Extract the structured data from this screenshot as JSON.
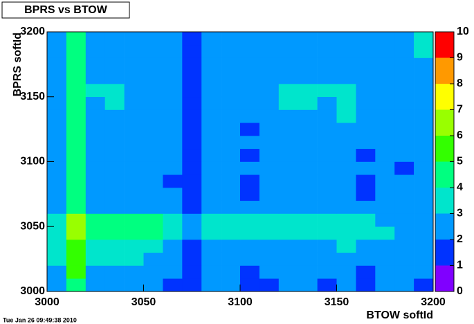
{
  "chart_data": {
    "type": "heatmap",
    "title": "BPRS vs BTOW",
    "xlabel": "BTOW softId",
    "ylabel": "BPRS softId",
    "footer": "Tue Jan 26 09:49:38 2010",
    "xbins": [
      3000,
      3010,
      3020,
      3030,
      3040,
      3050,
      3060,
      3070,
      3080,
      3090,
      3100,
      3110,
      3120,
      3130,
      3140,
      3150,
      3160,
      3170,
      3180,
      3190,
      3200
    ],
    "ybins": [
      3000,
      3010,
      3020,
      3030,
      3040,
      3050,
      3060,
      3070,
      3080,
      3090,
      3100,
      3110,
      3120,
      3130,
      3140,
      3150,
      3160,
      3170,
      3180,
      3190,
      3200
    ],
    "values": [
      [
        2,
        4,
        2,
        2,
        2,
        2,
        1,
        1,
        2,
        2,
        1,
        1,
        2,
        2,
        1,
        2,
        1,
        2,
        2,
        1
      ],
      [
        2,
        5,
        2,
        2,
        2,
        2,
        2,
        1,
        2,
        2,
        1,
        2,
        2,
        2,
        2,
        2,
        1,
        2,
        2,
        2
      ],
      [
        3,
        5,
        3,
        3,
        3,
        2,
        2,
        1,
        2,
        2,
        2,
        2,
        2,
        2,
        2,
        2,
        2,
        2,
        2,
        2
      ],
      [
        3,
        5,
        3,
        3,
        3,
        3,
        2,
        1,
        2,
        2,
        2,
        2,
        2,
        2,
        2,
        3,
        2,
        2,
        2,
        2
      ],
      [
        3,
        6,
        4,
        4,
        4,
        4,
        3,
        2,
        3,
        3,
        3,
        3,
        3,
        3,
        3,
        3,
        3,
        3,
        2,
        2
      ],
      [
        3,
        6,
        4,
        4,
        4,
        4,
        3,
        2,
        3,
        3,
        3,
        3,
        3,
        3,
        3,
        3,
        3,
        2,
        2,
        2
      ],
      [
        2,
        4,
        2,
        2,
        2,
        2,
        2,
        1,
        2,
        2,
        2,
        2,
        2,
        2,
        2,
        2,
        2,
        2,
        2,
        2
      ],
      [
        2,
        4,
        2,
        2,
        2,
        2,
        2,
        1,
        2,
        2,
        1,
        2,
        2,
        2,
        2,
        2,
        1,
        2,
        2,
        2
      ],
      [
        2,
        4,
        2,
        2,
        2,
        2,
        1,
        1,
        2,
        2,
        1,
        2,
        2,
        2,
        2,
        2,
        1,
        2,
        2,
        2
      ],
      [
        2,
        4,
        2,
        2,
        2,
        2,
        2,
        1,
        2,
        2,
        2,
        2,
        2,
        2,
        2,
        2,
        2,
        2,
        1,
        2
      ],
      [
        2,
        4,
        2,
        2,
        2,
        2,
        2,
        1,
        2,
        2,
        1,
        2,
        2,
        2,
        2,
        2,
        1,
        2,
        2,
        2
      ],
      [
        2,
        4,
        2,
        2,
        2,
        2,
        2,
        1,
        2,
        2,
        2,
        2,
        2,
        2,
        2,
        2,
        2,
        2,
        2,
        2
      ],
      [
        2,
        4,
        2,
        2,
        2,
        2,
        2,
        1,
        2,
        2,
        1,
        2,
        2,
        2,
        2,
        2,
        2,
        2,
        2,
        2
      ],
      [
        2,
        4,
        2,
        2,
        2,
        2,
        2,
        1,
        2,
        2,
        2,
        2,
        2,
        2,
        2,
        3,
        2,
        2,
        2,
        2
      ],
      [
        2,
        4,
        2,
        3,
        2,
        2,
        2,
        1,
        2,
        2,
        2,
        2,
        3,
        3,
        2,
        3,
        2,
        2,
        2,
        2
      ],
      [
        2,
        4,
        3,
        3,
        2,
        2,
        2,
        1,
        2,
        2,
        2,
        2,
        3,
        3,
        3,
        3,
        2,
        2,
        2,
        2
      ],
      [
        2,
        4,
        2,
        2,
        2,
        2,
        2,
        1,
        2,
        2,
        2,
        2,
        2,
        2,
        2,
        2,
        2,
        2,
        2,
        2
      ],
      [
        2,
        4,
        2,
        2,
        2,
        2,
        2,
        1,
        2,
        2,
        2,
        2,
        2,
        2,
        2,
        2,
        2,
        2,
        2,
        2
      ],
      [
        2,
        4,
        2,
        2,
        2,
        2,
        2,
        1,
        2,
        2,
        2,
        2,
        2,
        2,
        2,
        2,
        2,
        2,
        2,
        3
      ],
      [
        2,
        4,
        2,
        2,
        2,
        2,
        2,
        1,
        2,
        2,
        2,
        2,
        2,
        2,
        2,
        2,
        2,
        2,
        2,
        3
      ]
    ],
    "xlim": [
      3000,
      3200
    ],
    "ylim": [
      3000,
      3200
    ],
    "xticks": [
      3000,
      3050,
      3100,
      3150,
      3200
    ],
    "yticks": [
      3000,
      3050,
      3100,
      3150,
      3200
    ],
    "zlim": [
      0,
      10
    ],
    "zticks": [
      0,
      1,
      2,
      3,
      4,
      5,
      6,
      7,
      8,
      9,
      10
    ],
    "palette": [
      "#8000ff",
      "#0033ff",
      "#0099ff",
      "#00e5cc",
      "#00ff80",
      "#33ff00",
      "#99ff00",
      "#ffff00",
      "#ff9900",
      "#ff0000"
    ]
  }
}
